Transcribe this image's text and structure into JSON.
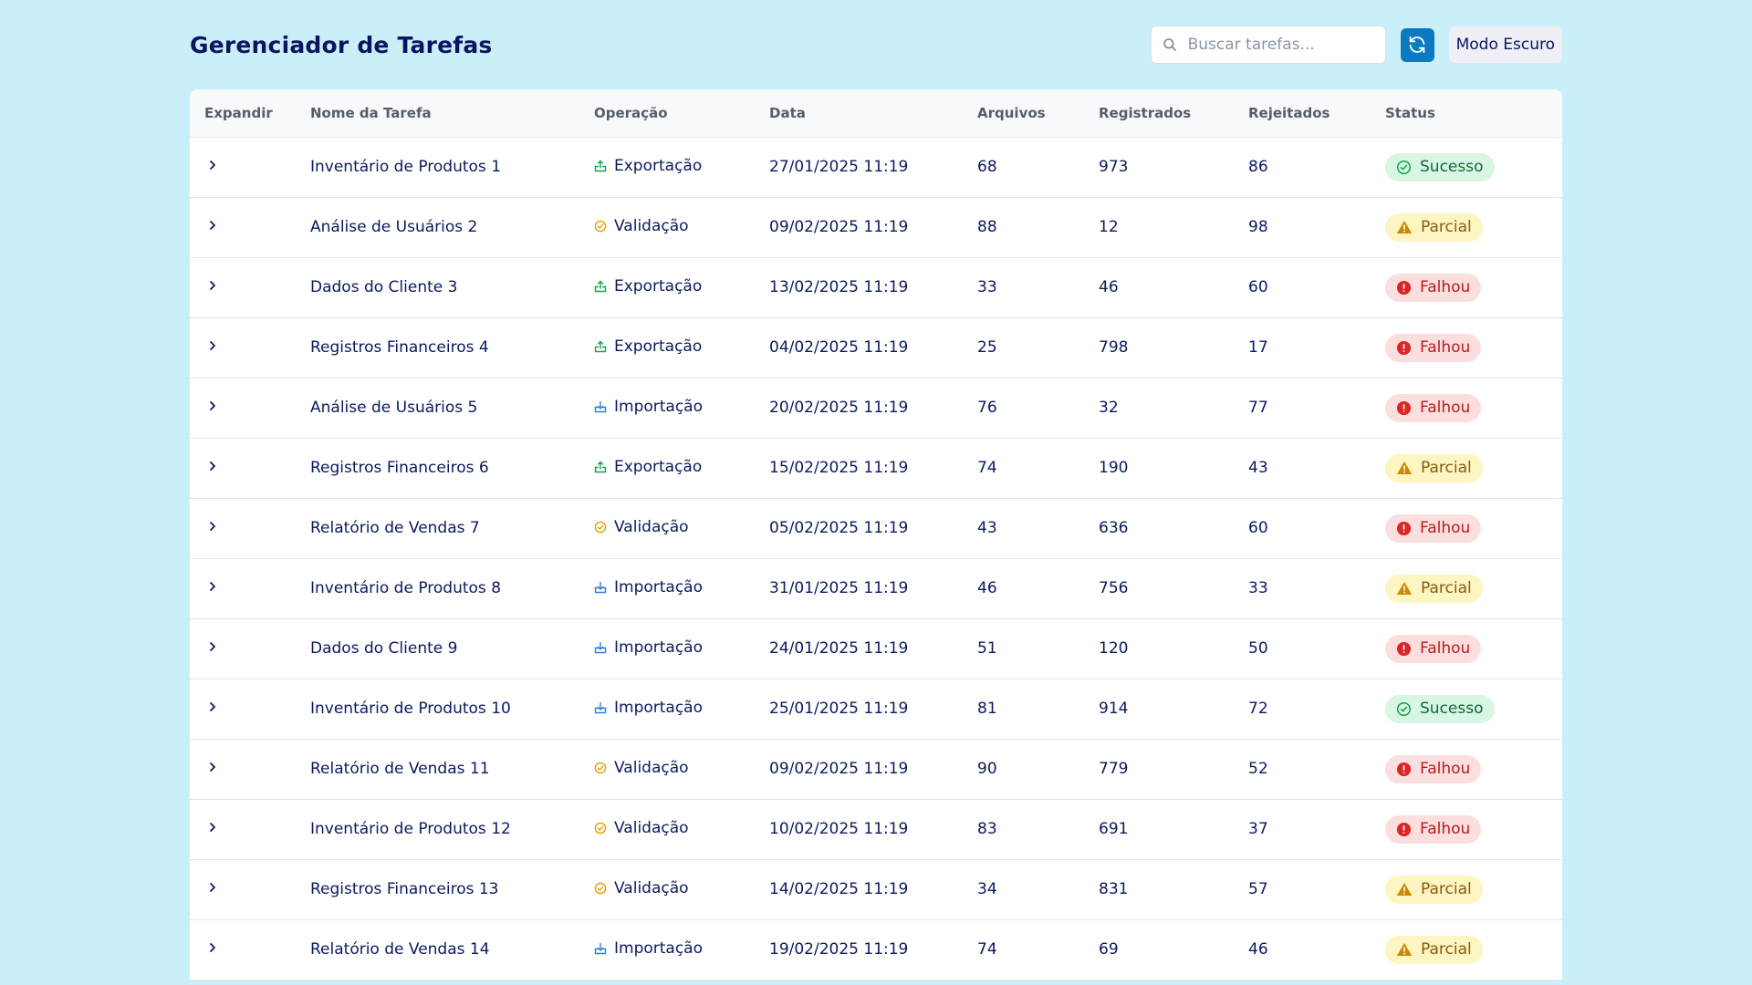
{
  "header": {
    "title": "Gerenciador de Tarefas",
    "search_placeholder": "Buscar tarefas...",
    "refresh_icon": "refresh-icon",
    "dark_mode_label": "Modo Escuro"
  },
  "table": {
    "columns": [
      "Expandir",
      "Nome da Tarefa",
      "Operação",
      "Data",
      "Arquivos",
      "Registrados",
      "Rejeitados",
      "Status"
    ],
    "rows": [
      {
        "name": "Inventário de Produtos 1",
        "operation": "Exportação",
        "date": "27/01/2025 11:19",
        "files": "68",
        "registered": "973",
        "rejected": "86",
        "status": "Sucesso"
      },
      {
        "name": "Análise de Usuários 2",
        "operation": "Validação",
        "date": "09/02/2025 11:19",
        "files": "88",
        "registered": "12",
        "rejected": "98",
        "status": "Parcial"
      },
      {
        "name": "Dados do Cliente 3",
        "operation": "Exportação",
        "date": "13/02/2025 11:19",
        "files": "33",
        "registered": "46",
        "rejected": "60",
        "status": "Falhou"
      },
      {
        "name": "Registros Financeiros 4",
        "operation": "Exportação",
        "date": "04/02/2025 11:19",
        "files": "25",
        "registered": "798",
        "rejected": "17",
        "status": "Falhou"
      },
      {
        "name": "Análise de Usuários 5",
        "operation": "Importação",
        "date": "20/02/2025 11:19",
        "files": "76",
        "registered": "32",
        "rejected": "77",
        "status": "Falhou"
      },
      {
        "name": "Registros Financeiros 6",
        "operation": "Exportação",
        "date": "15/02/2025 11:19",
        "files": "74",
        "registered": "190",
        "rejected": "43",
        "status": "Parcial"
      },
      {
        "name": "Relatório de Vendas 7",
        "operation": "Validação",
        "date": "05/02/2025 11:19",
        "files": "43",
        "registered": "636",
        "rejected": "60",
        "status": "Falhou"
      },
      {
        "name": "Inventário de Produtos 8",
        "operation": "Importação",
        "date": "31/01/2025 11:19",
        "files": "46",
        "registered": "756",
        "rejected": "33",
        "status": "Parcial"
      },
      {
        "name": "Dados do Cliente 9",
        "operation": "Importação",
        "date": "24/01/2025 11:19",
        "files": "51",
        "registered": "120",
        "rejected": "50",
        "status": "Falhou"
      },
      {
        "name": "Inventário de Produtos 10",
        "operation": "Importação",
        "date": "25/01/2025 11:19",
        "files": "81",
        "registered": "914",
        "rejected": "72",
        "status": "Sucesso"
      },
      {
        "name": "Relatório de Vendas 11",
        "operation": "Validação",
        "date": "09/02/2025 11:19",
        "files": "90",
        "registered": "779",
        "rejected": "52",
        "status": "Falhou"
      },
      {
        "name": "Inventário de Produtos 12",
        "operation": "Validação",
        "date": "10/02/2025 11:19",
        "files": "83",
        "registered": "691",
        "rejected": "37",
        "status": "Falhou"
      },
      {
        "name": "Registros Financeiros 13",
        "operation": "Validação",
        "date": "14/02/2025 11:19",
        "files": "34",
        "registered": "831",
        "rejected": "57",
        "status": "Parcial"
      },
      {
        "name": "Relatório de Vendas 14",
        "operation": "Importação",
        "date": "19/02/2025 11:19",
        "files": "74",
        "registered": "69",
        "rejected": "46",
        "status": "Parcial"
      }
    ]
  },
  "operation_icons": {
    "Exportação": "export-icon",
    "Importação": "import-icon",
    "Validação": "validation-icon"
  },
  "status_icons": {
    "Sucesso": "check-circle-icon",
    "Parcial": "warning-triangle-icon",
    "Falhou": "alert-circle-icon"
  },
  "colors": {
    "background": "#caeff8",
    "accent": "#0a7bc0",
    "success": "#16a34a",
    "partial": "#ca8a04",
    "failed": "#dc2626",
    "import": "#2f80d1"
  }
}
